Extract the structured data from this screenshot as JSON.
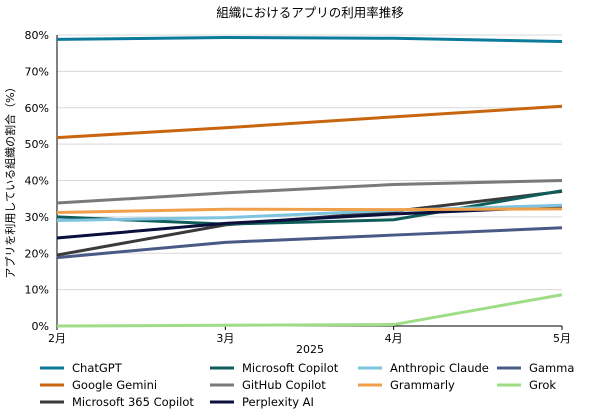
{
  "chart_data": {
    "type": "line",
    "title": "組織におけるアプリの利用率推移",
    "xlabel": "2025",
    "ylabel": "アプリを利用している組織の割合（%）",
    "x": [
      "2月",
      "3月",
      "4月",
      "5月"
    ],
    "ylim": [
      0,
      80
    ],
    "yticks": [
      "0%",
      "10%",
      "20%",
      "30%",
      "40%",
      "50%",
      "60%",
      "70%",
      "80%"
    ],
    "grid": "horizontal",
    "legend_position": "bottom",
    "series": [
      {
        "name": "ChatGPT",
        "color": "#0b7a9b",
        "values": [
          78.8,
          79.3,
          79.1,
          78.2
        ]
      },
      {
        "name": "Google Gemini",
        "color": "#c8650e",
        "values": [
          51.8,
          54.5,
          57.5,
          60.4
        ]
      },
      {
        "name": "Microsoft 365 Copilot",
        "color": "#3a3a3a",
        "values": [
          19.5,
          27.8,
          31.5,
          37.0
        ]
      },
      {
        "name": "Microsoft Copilot",
        "color": "#0f5d5a",
        "values": [
          30.0,
          28.0,
          29.2,
          37.2
        ]
      },
      {
        "name": "GitHub Copilot",
        "color": "#7a7a7a",
        "values": [
          33.8,
          36.6,
          38.9,
          40.0
        ]
      },
      {
        "name": "Perplexity AI",
        "color": "#0a0f3c",
        "values": [
          24.2,
          28.2,
          30.8,
          32.8
        ]
      },
      {
        "name": "Anthropic Claude",
        "color": "#7ec3df",
        "values": [
          29.0,
          29.8,
          31.8,
          33.2
        ]
      },
      {
        "name": "Grammarly",
        "color": "#f0a04b",
        "values": [
          31.2,
          32.1,
          32.0,
          32.2
        ]
      },
      {
        "name": "Gamma",
        "color": "#4a5a86",
        "values": [
          18.8,
          23.0,
          25.0,
          27.0
        ]
      },
      {
        "name": "Grok",
        "color": "#9edc85",
        "values": [
          0.0,
          0.2,
          0.4,
          8.6
        ]
      }
    ]
  }
}
